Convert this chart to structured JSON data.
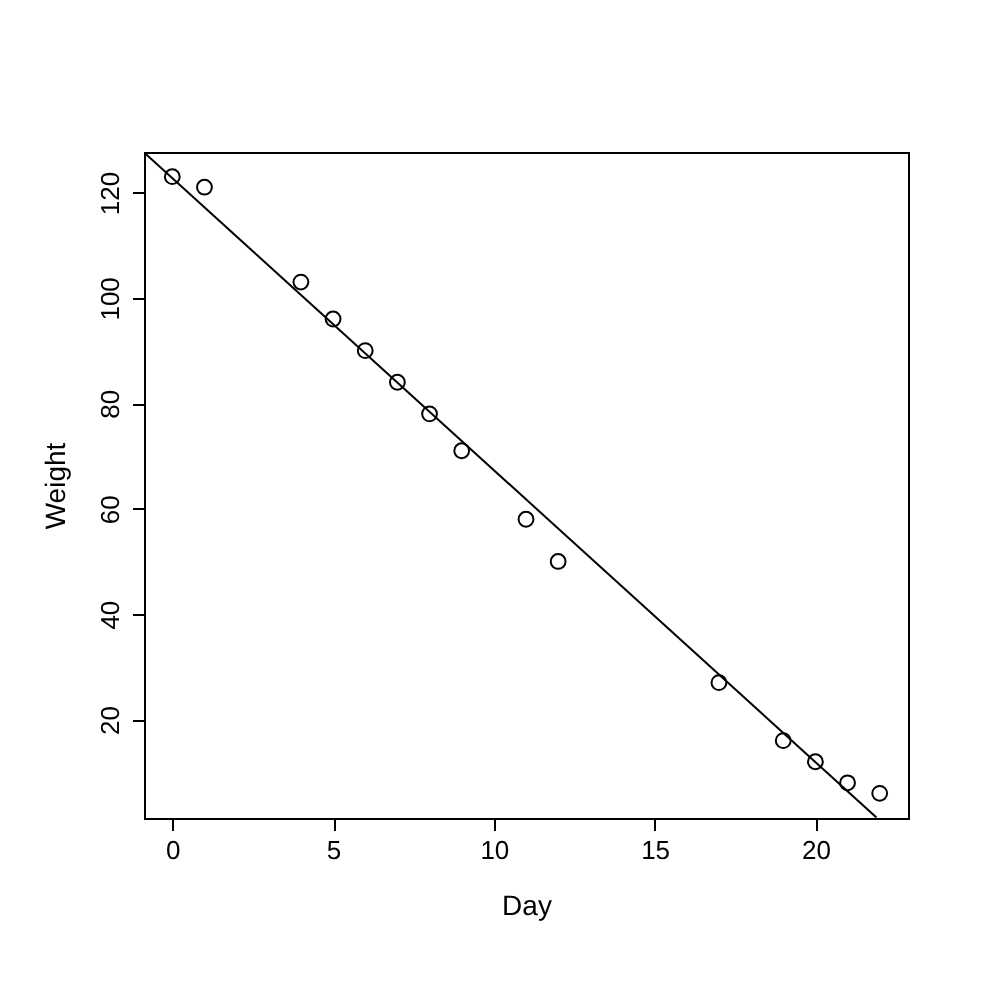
{
  "chart_data": {
    "type": "scatter",
    "xlabel": "Day",
    "ylabel": "Weight",
    "series": [
      {
        "color": "#000000",
        "marker": "circle",
        "x": [
          0,
          1,
          4,
          5,
          6,
          7,
          8,
          9,
          11,
          12,
          17,
          19,
          20,
          21,
          22
        ],
        "values": [
          123,
          121,
          103,
          96,
          90,
          84,
          78,
          71,
          58,
          50,
          27,
          16,
          12,
          8,
          6
        ]
      },
      {
        "type": "line",
        "color": "#000000",
        "line_style": "solid",
        "x": [
          -0.88,
          21.9
        ],
        "values": [
          127.6,
          1.4
        ]
      }
    ],
    "xlim": [
      -0.88,
      22.88
    ],
    "ylim": [
      1.32,
      127.68
    ],
    "xticks": [
      0,
      5,
      10,
      15,
      20
    ],
    "yticks": [
      20,
      40,
      60,
      80,
      100,
      120
    ],
    "grid": false
  }
}
